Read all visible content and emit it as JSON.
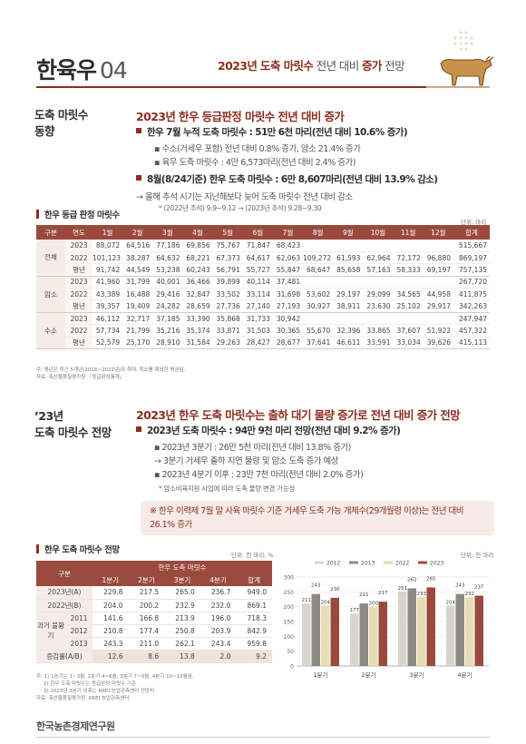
{
  "header": {
    "title": "한육우",
    "number": "04",
    "subtitle_pre": "2023년 도축 마릿수",
    "subtitle_mid": "전년 대비",
    "subtitle_bold": "증가",
    "subtitle_post": "전망"
  },
  "section1": {
    "side_heading_line1": "도축 마릿수",
    "side_heading_line2": "동향",
    "title": "2023년 한우 등급판정 마릿수 전년 대비 증가",
    "bullet1": "한우 7월 누적 도축 마릿수 : 51만 6천 마리(전년 대비 10.6% 증가)",
    "bullet1_sub1": "수소(거세우 포함) 전년 대비 0.8% 증가, 암소 21.4% 증가",
    "bullet1_sub2": "육우 도축 마릿수 : 4만 6,573마리(전년 대비 2.4% 증가)",
    "bullet2": "8월(8/24기준) 한우 도축 마릿수 : 6만 8,607마리(전년 대비 13.9% 감소)",
    "bullet2_sub": "→ 올해 추석 시기는 지난해보다 늦어 도축 마릿수 전년 대비 감소",
    "bullet2_note": "* (2022년 추석) 9.9~9.12 → (2023년 추석) 9.28~9.30",
    "table_caption": "한우 등급 판정 마릿수",
    "table_unit": "단위: 마리",
    "table_headers": [
      "구분",
      "연도",
      "1월",
      "2월",
      "3월",
      "4월",
      "5월",
      "6월",
      "7월",
      "8월",
      "9월",
      "10월",
      "11월",
      "12월",
      "합계"
    ],
    "groups": [
      {
        "name": "전체",
        "rows": [
          [
            "2023",
            "88,072",
            "64,516",
            "77,186",
            "69,856",
            "75,767",
            "71,847",
            "68,423",
            "",
            "",
            "",
            "",
            "",
            "515,667"
          ],
          [
            "2022",
            "101,123",
            "38,287",
            "64,632",
            "68,221",
            "67,373",
            "64,617",
            "62,063",
            "109,272",
            "61,593",
            "62,964",
            "72,172",
            "96,880",
            "869,197"
          ],
          [
            "평년",
            "91,742",
            "44,549",
            "53,238",
            "60,243",
            "56,791",
            "55,727",
            "55,847",
            "68,647",
            "85,658",
            "57,163",
            "58,333",
            "69,197",
            "757,135"
          ]
        ]
      },
      {
        "name": "암소",
        "rows": [
          [
            "2023",
            "41,960",
            "31,799",
            "40,001",
            "36,466",
            "39,899",
            "40,114",
            "37,481",
            "",
            "",
            "",
            "",
            "",
            "267,720"
          ],
          [
            "2022",
            "43,389",
            "16,488",
            "29,416",
            "32,847",
            "33,502",
            "33,114",
            "31,698",
            "53,602",
            "29,197",
            "29,099",
            "34,565",
            "44,958",
            "411,875"
          ],
          [
            "평년",
            "39,357",
            "19,409",
            "24,282",
            "28,659",
            "27,736",
            "27,140",
            "27,193",
            "30,927",
            "38,911",
            "23,630",
            "25,102",
            "29,917",
            "342,263"
          ]
        ]
      },
      {
        "name": "수소",
        "rows": [
          [
            "2023",
            "46,112",
            "32,717",
            "37,185",
            "33,390",
            "35,868",
            "31,733",
            "30,942",
            "",
            "",
            "",
            "",
            "",
            "247,947"
          ],
          [
            "2022",
            "57,734",
            "21,799",
            "35,216",
            "35,374",
            "33,871",
            "31,503",
            "30,365",
            "55,670",
            "32,396",
            "33,865",
            "37,607",
            "51,922",
            "457,322"
          ],
          [
            "평년",
            "52,579",
            "25,170",
            "28,910",
            "31,584",
            "29,263",
            "28,427",
            "28,677",
            "37,641",
            "46,611",
            "33,591",
            "33,034",
            "39,626",
            "415,113"
          ]
        ]
      }
    ],
    "note1": "주: 평년은 최근 5개년(2018~2022년)의 최대, 최소를 제외한 평균임.",
    "note2": "자료: 축산물품질평가원 「등급판정통계」"
  },
  "section2": {
    "side_heading_line1": "’23년",
    "side_heading_line2": "도축 마릿수 전망",
    "title": "2023년 한우 도축 마릿수는 출하 대기 물량 증가로 전년 대비 증가 전망",
    "bullet1": "2023년 도축 마릿수 : 94만 9천 마리 전망(전년 대비 9.2% 증가)",
    "sub1": "2023년 3분기 : 26만 5천 마리(전년 대비 13.8% 증가)",
    "sub2": "→ 3분기 거세우 출하 지연 물량 및 암소 도축 증가 예상",
    "sub3": "2023년 4분기 이후 : 23만 7천 마리(전년 대비 2.0% 증가)",
    "sub_note": "* 암소비육지원 사업에 따라 도축 물량 변경 가능성",
    "callout": "※ 한우 이력제 7월 말 사육 마릿수 기준 거세우 도축 가능 개체수(29개월령 이상)는 전년 대비 26.1% 증가",
    "table_caption": "한우 도축 마릿수 전망",
    "table_unit": "단위: 천 마리, %",
    "chart_unit": "단위: 천 마리",
    "t2_col_group": "구분",
    "t2_col_super": "한우 도축 마릿수",
    "t2_headers": [
      "1분기",
      "2분기",
      "3분기",
      "4분기",
      "합계"
    ],
    "t2_row_a": {
      "label": "2023년(A)",
      "values": [
        "229.8",
        "217.5",
        "265.0",
        "236.7",
        "949.0"
      ]
    },
    "t2_row_b": {
      "label": "2022년(B)",
      "values": [
        "204.0",
        "200.2",
        "232.9",
        "232.0",
        "869.1"
      ]
    },
    "t2_past_label": "과거 불황기",
    "t2_past_rows": [
      {
        "year": "2011",
        "values": [
          "141.6",
          "166.8",
          "213.9",
          "196.0",
          "718.3"
        ]
      },
      {
        "year": "2012",
        "values": [
          "210.8",
          "177.4",
          "250.8",
          "203.9",
          "842.9"
        ]
      },
      {
        "year": "2013",
        "values": [
          "243.3",
          "211.0",
          "262.1",
          "243.4",
          "959.8"
        ]
      }
    ],
    "t2_row_rate": {
      "label": "증감률(A/B)",
      "values": [
        "12.6",
        "8.6",
        "13.8",
        "2.0",
        "9.2"
      ]
    },
    "notes": [
      "주: 1) 1분기는 1~3월, 2분기 4~6월, 3분기 7~9월, 4분기 10~12월임.",
      "2) 한우 도축 마릿수는 등급판정 마릿수 기준",
      "3) 2023년 3분기 이후는 KREI 농업관측센터 전망치",
      "자료: 축산물품질평가원, KREI 농업관측센터"
    ]
  },
  "footer": {
    "org": "한국농촌경제연구원"
  },
  "colors": {
    "accent": "#8b2e1f",
    "table_header": "#9a4a3d"
  },
  "chart_data": {
    "type": "bar",
    "categories": [
      "1분기",
      "2분기",
      "3분기",
      "4분기"
    ],
    "series": [
      {
        "name": "2012",
        "values": [
          211,
          177,
          251,
          204
        ],
        "color": "#d9d4cf"
      },
      {
        "name": "2013",
        "values": [
          243,
          211,
          262,
          243
        ],
        "color": "#8e8a86"
      },
      {
        "name": "2022",
        "values": [
          204,
          200,
          233,
          232
        ],
        "color": "#e8dcb5"
      },
      {
        "name": "2023",
        "values": [
          230,
          217,
          265,
          237
        ],
        "color": "#9a4a3d"
      }
    ],
    "data_labels": [
      [
        "211",
        "243",
        "204",
        "230"
      ],
      [
        "177",
        "211",
        "200",
        "217"
      ],
      [
        "251",
        "262",
        "233",
        "265"
      ],
      [
        "204",
        "243",
        "232",
        "237"
      ]
    ],
    "y_ticks": [
      "0",
      "50",
      "100",
      "150",
      "200",
      "250",
      "300"
    ],
    "ylim": [
      0,
      300
    ],
    "legend_position": "top"
  }
}
